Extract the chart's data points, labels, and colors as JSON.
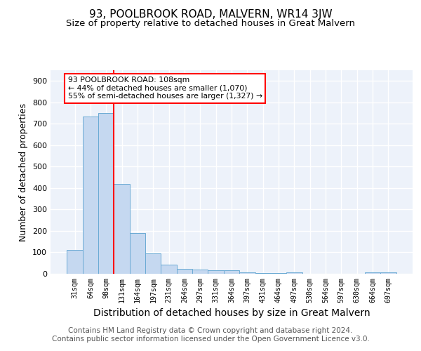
{
  "title": "93, POOLBROOK ROAD, MALVERN, WR14 3JW",
  "subtitle": "Size of property relative to detached houses in Great Malvern",
  "xlabel": "Distribution of detached houses by size in Great Malvern",
  "ylabel": "Number of detached properties",
  "bar_labels": [
    "31sqm",
    "64sqm",
    "98sqm",
    "131sqm",
    "164sqm",
    "197sqm",
    "231sqm",
    "264sqm",
    "297sqm",
    "331sqm",
    "364sqm",
    "397sqm",
    "431sqm",
    "464sqm",
    "497sqm",
    "530sqm",
    "564sqm",
    "597sqm",
    "630sqm",
    "664sqm",
    "697sqm"
  ],
  "bar_values": [
    113,
    735,
    750,
    420,
    190,
    95,
    43,
    22,
    20,
    18,
    17,
    7,
    2,
    2,
    8,
    0,
    0,
    0,
    0,
    8,
    8
  ],
  "bar_color": "#c5d8f0",
  "bar_edge_color": "#6aaad4",
  "vline_x": 2.5,
  "vline_color": "red",
  "annotation_text": "93 POOLBROOK ROAD: 108sqm\n← 44% of detached houses are smaller (1,070)\n55% of semi-detached houses are larger (1,327) →",
  "annotation_box_color": "white",
  "annotation_box_edge_color": "red",
  "footnote": "Contains HM Land Registry data © Crown copyright and database right 2024.\nContains public sector information licensed under the Open Government Licence v3.0.",
  "ylim": [
    0,
    950
  ],
  "yticks": [
    0,
    100,
    200,
    300,
    400,
    500,
    600,
    700,
    800,
    900
  ],
  "background_color": "#edf2fa",
  "grid_color": "white",
  "title_fontsize": 11,
  "subtitle_fontsize": 9.5,
  "xlabel_fontsize": 10,
  "ylabel_fontsize": 9,
  "footnote_fontsize": 7.5
}
